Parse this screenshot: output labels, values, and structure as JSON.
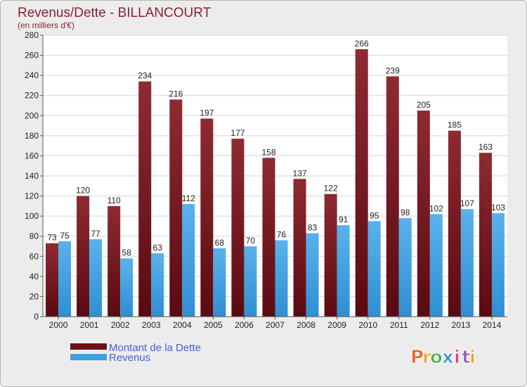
{
  "colors": {
    "dette": "#7a1f24",
    "revenus": "#3d9fe0",
    "title": "#8a2030",
    "legend_text": "#4a5de0"
  },
  "chart_data": {
    "type": "bar",
    "title": "Revenus/Dette - BILLANCOURT",
    "subtitle": "(en milliers d'€)",
    "categories": [
      "2000",
      "2001",
      "2002",
      "2003",
      "2004",
      "2005",
      "2006",
      "2007",
      "2008",
      "2009",
      "2010",
      "2011",
      "2012",
      "2013",
      "2014"
    ],
    "series": [
      {
        "name": "Montant de la Dette",
        "values": [
          73,
          120,
          110,
          234,
          216,
          197,
          177,
          158,
          137,
          122,
          266,
          239,
          205,
          185,
          163
        ]
      },
      {
        "name": "Revenus",
        "values": [
          75,
          77,
          58,
          63,
          112,
          68,
          70,
          76,
          83,
          91,
          95,
          98,
          102,
          107,
          103
        ]
      }
    ],
    "ylim": [
      0,
      280
    ],
    "yticks": [
      0,
      20,
      40,
      60,
      80,
      100,
      120,
      140,
      160,
      180,
      200,
      220,
      240,
      260,
      280
    ],
    "grid": true,
    "legend": "bottom-left"
  },
  "brand": {
    "letters": [
      "P",
      "r",
      "o",
      "x",
      "i",
      "t",
      "i"
    ],
    "colors": [
      "#e8622a",
      "#f0a020",
      "#49b54a",
      "#3a8fd8",
      "#e04080",
      "#9b59b6",
      "#f0a020"
    ]
  }
}
